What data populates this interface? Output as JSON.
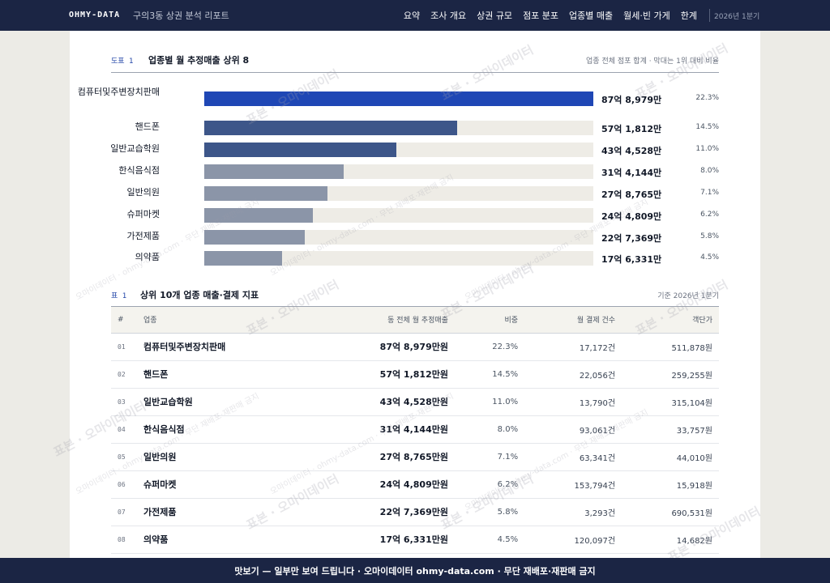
{
  "topbar": {
    "brand": "OHMY-DATA",
    "report_title": "구의3동 상권 분석 리포트",
    "nav": [
      "요약",
      "조사 개요",
      "상권 규모",
      "점포 분포",
      "업종별 매출",
      "월세·빈 가게",
      "한계"
    ],
    "period": "2026년 1분기"
  },
  "figure": {
    "tag": "도표 1",
    "title": "업종별 월 추정매출 상위 8",
    "note": "업종 전체 점포 합계 · 막대는 1위 대비 비율",
    "colors": {
      "top": "#1f47b5",
      "high": "#3d5689",
      "mid": "#8b95a8",
      "track": "#eeece6"
    }
  },
  "chart_data": {
    "type": "bar",
    "title": "업종별 월 추정매출 상위 8",
    "categories": [
      "컴퓨터및주변장치판매",
      "핸드폰",
      "일반교습학원",
      "한식음식점",
      "일반의원",
      "슈퍼마켓",
      "가전제품",
      "의약품"
    ],
    "values": [
      87.8979,
      57.1812,
      43.4528,
      31.4144,
      27.8765,
      24.4809,
      22.7369,
      17.6331
    ],
    "value_labels": [
      "87억 8,979만",
      "57억 1,812만",
      "43억 4,528만",
      "31억 4,144만",
      "27억 8,765만",
      "24억 4,809만",
      "22억 7,369만",
      "17억 6,331만"
    ],
    "share_labels": [
      "22.3%",
      "14.5%",
      "11.0%",
      "8.0%",
      "7.1%",
      "6.2%",
      "5.8%",
      "4.5%"
    ],
    "unit": "억원"
  },
  "table": {
    "tag": "표 1",
    "title": "상위 10개 업종 매출·결제 지표",
    "note": "기준 2026년 1분기",
    "headers": [
      "#",
      "업종",
      "동 전체 월 추정매출",
      "비중",
      "월 결제 건수",
      "객단가"
    ],
    "rows": [
      [
        "01",
        "컴퓨터및주변장치판매",
        "87억 8,979만원",
        "22.3%",
        "17,172건",
        "511,878원"
      ],
      [
        "02",
        "핸드폰",
        "57억 1,812만원",
        "14.5%",
        "22,056건",
        "259,255원"
      ],
      [
        "03",
        "일반교습학원",
        "43억 4,528만원",
        "11.0%",
        "13,790건",
        "315,104원"
      ],
      [
        "04",
        "한식음식점",
        "31억 4,144만원",
        "8.0%",
        "93,061건",
        "33,757원"
      ],
      [
        "05",
        "일반의원",
        "27억 8,765만원",
        "7.1%",
        "63,341건",
        "44,010원"
      ],
      [
        "06",
        "슈퍼마켓",
        "24억 4,809만원",
        "6.2%",
        "153,794건",
        "15,918원"
      ],
      [
        "07",
        "가전제품",
        "22억 7,369만원",
        "5.8%",
        "3,293건",
        "690,531원"
      ],
      [
        "08",
        "의약품",
        "17억 6,331만원",
        "4.5%",
        "120,097건",
        "14,682원"
      ]
    ]
  },
  "watermark": {
    "primary": "표본 · 오마이데이터",
    "secondary": "오마이데이터 · ohmy-data.com · 무단 재배포·재판매 금지"
  },
  "footer": {
    "text": "맛보기 — 일부만 보여 드립니다 · 오마이데이터 ohmy-data.com · 무단 재배포·재판매 금지"
  }
}
